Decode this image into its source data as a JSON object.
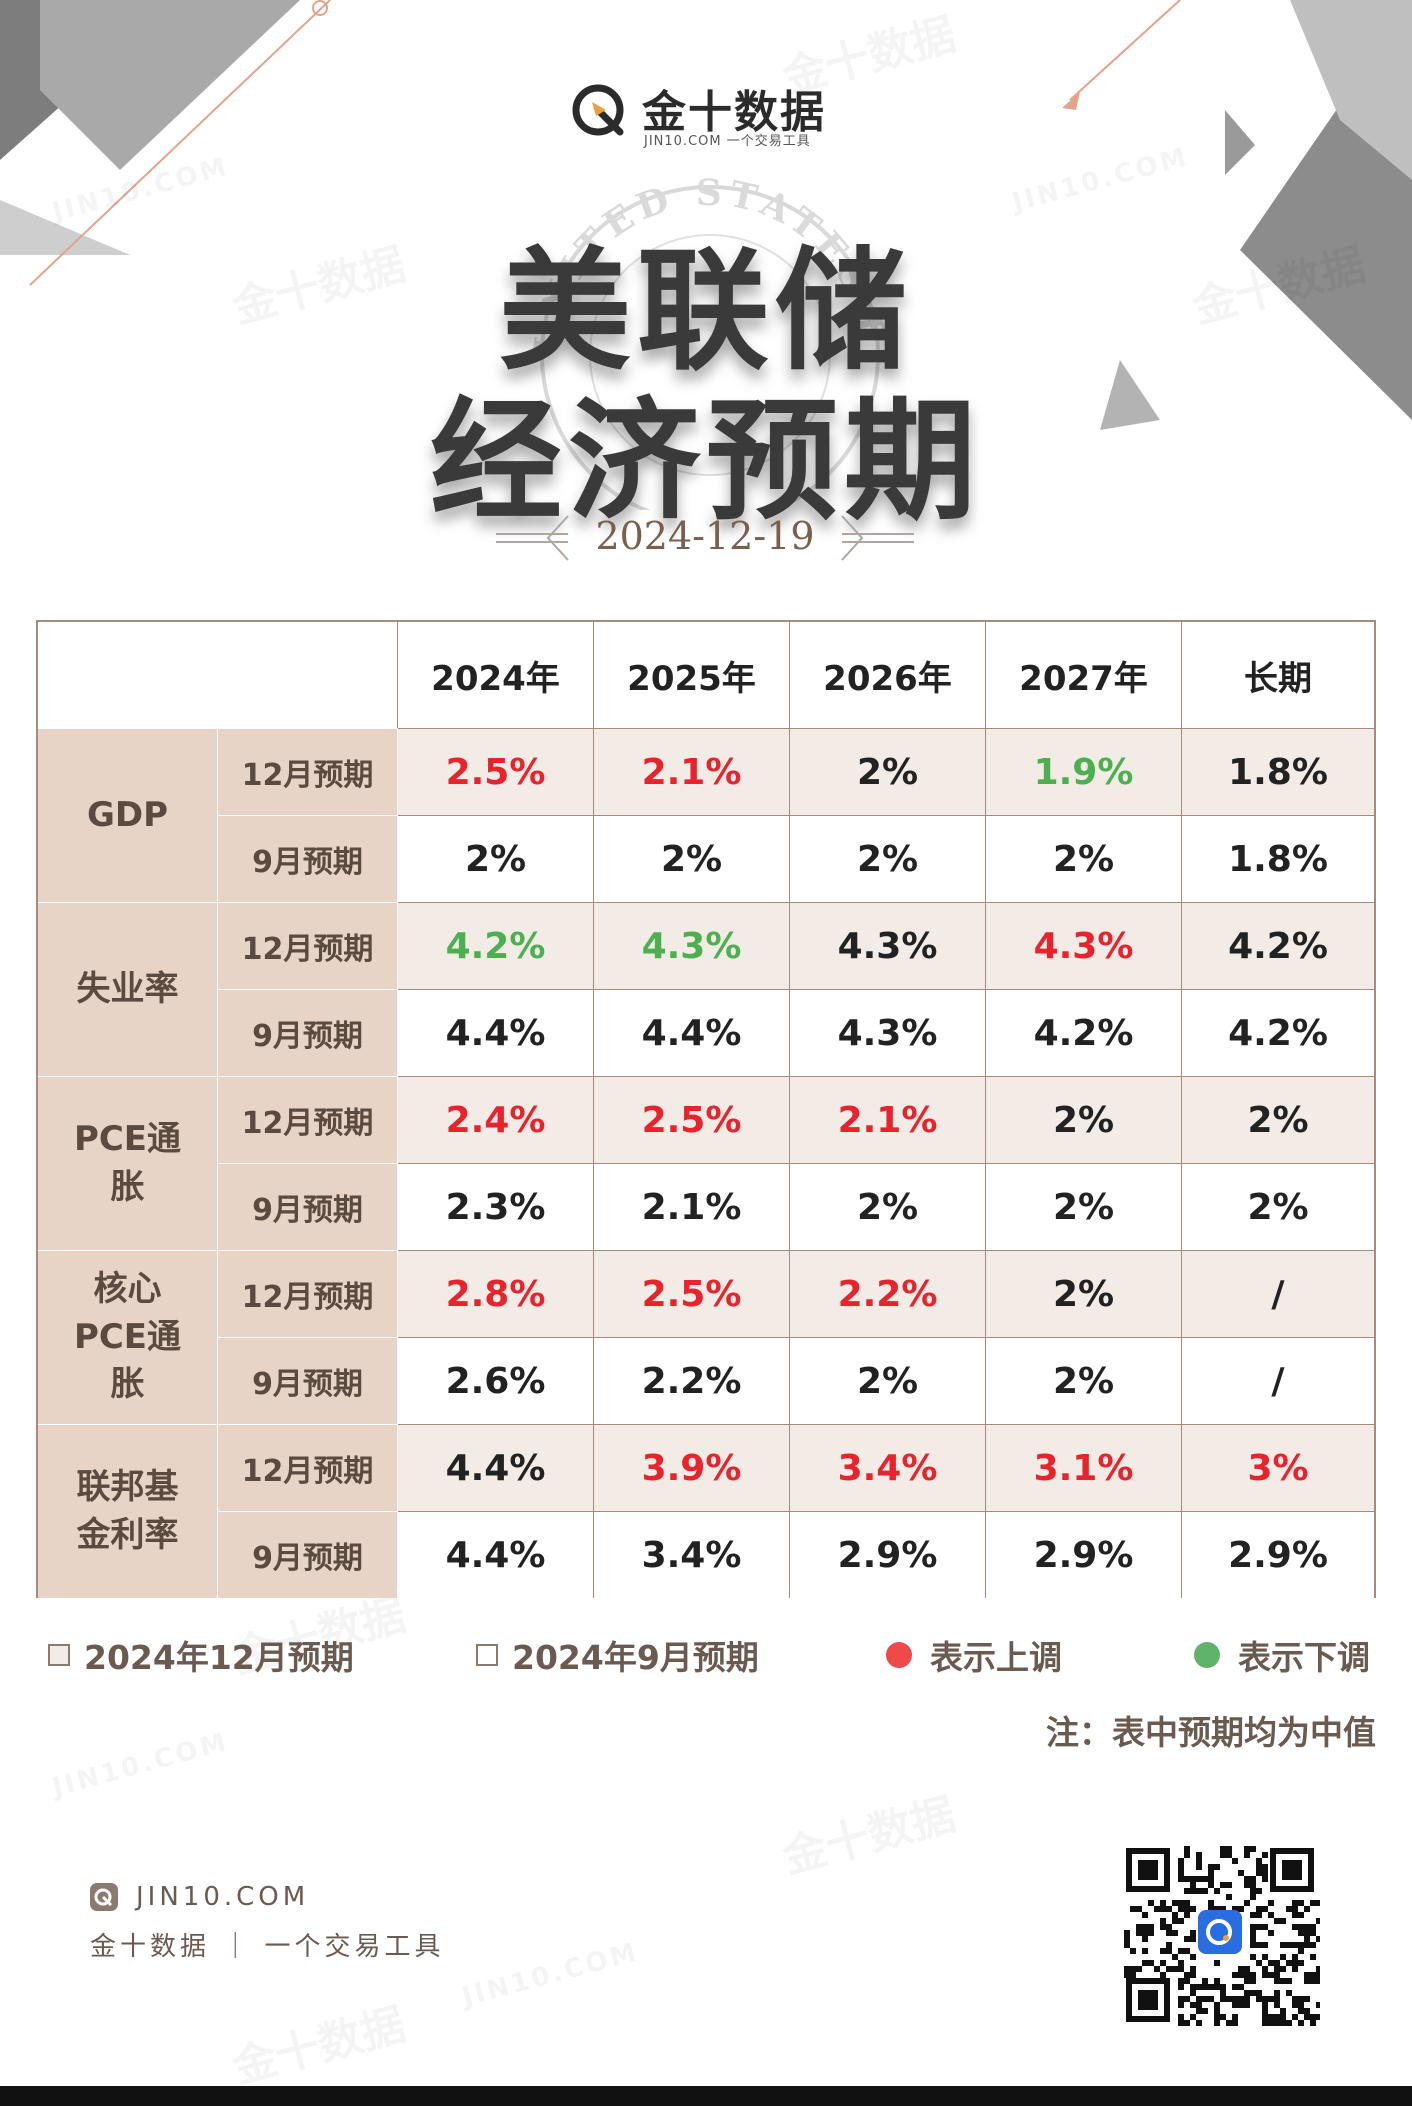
{
  "brand": {
    "name": "金十数据",
    "subtitle": "JIN10.COM 一个交易工具",
    "watermark_cn": "金十数据",
    "watermark_en": "JIN10.COM"
  },
  "seal_text": "UNITED STATES FEDERAL RESERVE",
  "title": {
    "line1": "美联储",
    "line2": "经济预期"
  },
  "date": "2024-12-19",
  "table": {
    "columns": [
      "2024年",
      "2025年",
      "2026年",
      "2027年",
      "长期"
    ],
    "groups": [
      {
        "label": "GDP",
        "rows": [
          {
            "label": "12月预期",
            "values": [
              {
                "v": "2.5%",
                "dir": "up"
              },
              {
                "v": "2.1%",
                "dir": "up"
              },
              {
                "v": "2%",
                "dir": "same"
              },
              {
                "v": "1.9%",
                "dir": "down"
              },
              {
                "v": "1.8%",
                "dir": "same"
              }
            ]
          },
          {
            "label": "9月预期",
            "values": [
              {
                "v": "2%",
                "dir": "same"
              },
              {
                "v": "2%",
                "dir": "same"
              },
              {
                "v": "2%",
                "dir": "same"
              },
              {
                "v": "2%",
                "dir": "same"
              },
              {
                "v": "1.8%",
                "dir": "same"
              }
            ]
          }
        ]
      },
      {
        "label": "失业率",
        "rows": [
          {
            "label": "12月预期",
            "values": [
              {
                "v": "4.2%",
                "dir": "down"
              },
              {
                "v": "4.3%",
                "dir": "down"
              },
              {
                "v": "4.3%",
                "dir": "same"
              },
              {
                "v": "4.3%",
                "dir": "up"
              },
              {
                "v": "4.2%",
                "dir": "same"
              }
            ]
          },
          {
            "label": "9月预期",
            "values": [
              {
                "v": "4.4%",
                "dir": "same"
              },
              {
                "v": "4.4%",
                "dir": "same"
              },
              {
                "v": "4.3%",
                "dir": "same"
              },
              {
                "v": "4.2%",
                "dir": "same"
              },
              {
                "v": "4.2%",
                "dir": "same"
              }
            ]
          }
        ]
      },
      {
        "label": "PCE通胀",
        "rows": [
          {
            "label": "12月预期",
            "values": [
              {
                "v": "2.4%",
                "dir": "up"
              },
              {
                "v": "2.5%",
                "dir": "up"
              },
              {
                "v": "2.1%",
                "dir": "up"
              },
              {
                "v": "2%",
                "dir": "same"
              },
              {
                "v": "2%",
                "dir": "same"
              }
            ]
          },
          {
            "label": "9月预期",
            "values": [
              {
                "v": "2.3%",
                "dir": "same"
              },
              {
                "v": "2.1%",
                "dir": "same"
              },
              {
                "v": "2%",
                "dir": "same"
              },
              {
                "v": "2%",
                "dir": "same"
              },
              {
                "v": "2%",
                "dir": "same"
              }
            ]
          }
        ]
      },
      {
        "label": "核心PCE通胀",
        "rows": [
          {
            "label": "12月预期",
            "values": [
              {
                "v": "2.8%",
                "dir": "up"
              },
              {
                "v": "2.5%",
                "dir": "up"
              },
              {
                "v": "2.2%",
                "dir": "up"
              },
              {
                "v": "2%",
                "dir": "same"
              },
              {
                "v": "/",
                "dir": "same"
              }
            ]
          },
          {
            "label": "9月预期",
            "values": [
              {
                "v": "2.6%",
                "dir": "same"
              },
              {
                "v": "2.2%",
                "dir": "same"
              },
              {
                "v": "2%",
                "dir": "same"
              },
              {
                "v": "2%",
                "dir": "same"
              },
              {
                "v": "/",
                "dir": "same"
              }
            ]
          }
        ]
      },
      {
        "label": "联邦基金利率",
        "rows": [
          {
            "label": "12月预期",
            "values": [
              {
                "v": "4.4%",
                "dir": "same"
              },
              {
                "v": "3.9%",
                "dir": "up"
              },
              {
                "v": "3.4%",
                "dir": "up"
              },
              {
                "v": "3.1%",
                "dir": "up"
              },
              {
                "v": "3%",
                "dir": "up"
              }
            ]
          },
          {
            "label": "9月预期",
            "values": [
              {
                "v": "4.4%",
                "dir": "same"
              },
              {
                "v": "3.4%",
                "dir": "same"
              },
              {
                "v": "2.9%",
                "dir": "same"
              },
              {
                "v": "2.9%",
                "dir": "same"
              },
              {
                "v": "2.9%",
                "dir": "same"
              }
            ]
          }
        ]
      }
    ]
  },
  "legend": {
    "dec": "2024年12月预期",
    "sep": "2024年9月预期",
    "up": "表示上调",
    "down": "表示下调"
  },
  "note": "注：表中预期均为中值",
  "footer": {
    "site": "JIN10.COM",
    "tagline": "金十数据 ｜ 一个交易工具"
  },
  "colors": {
    "up": "#e8232c",
    "down": "#4caf50",
    "label_bg": "#e8d4c6",
    "shade_bg": "#f3ebe6",
    "border": "#a68b7c"
  }
}
